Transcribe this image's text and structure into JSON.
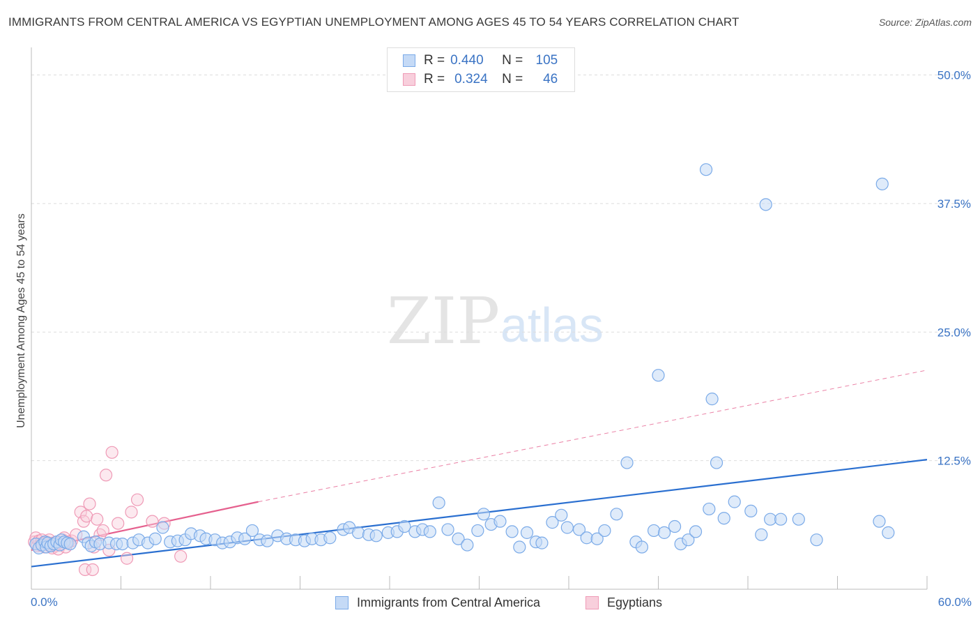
{
  "header": {
    "title": "IMMIGRANTS FROM CENTRAL AMERICA VS EGYPTIAN UNEMPLOYMENT AMONG AGES 45 TO 54 YEARS CORRELATION CHART",
    "source": "Source: ZipAtlas.com"
  },
  "watermark": {
    "zip": "ZIP",
    "atlas": "atlas"
  },
  "legend": {
    "rows": [
      {
        "r_label": "R =",
        "r_value": "0.440",
        "n_label": "N =",
        "n_value": "105"
      },
      {
        "r_label": "R =",
        "r_value": "0.324",
        "n_label": "N =",
        "n_value": "46"
      }
    ]
  },
  "bottom_legend": {
    "items": [
      "Immigrants from Central America",
      "Egyptians"
    ]
  },
  "chart_data": {
    "type": "scatter",
    "title": "IMMIGRANTS FROM CENTRAL AMERICA VS EGYPTIAN UNEMPLOYMENT AMONG AGES 45 TO 54 YEARS CORRELATION CHART",
    "xlabel": "",
    "ylabel": "Unemployment Among Ages 45 to 54 years",
    "xlim": [
      0,
      60
    ],
    "ylim": [
      0,
      52
    ],
    "x_tick_labels": [
      "0.0%",
      "60.0%"
    ],
    "y_ticks": [
      12.5,
      25.0,
      37.5,
      50.0
    ],
    "y_tick_labels": [
      "12.5%",
      "25.0%",
      "37.5%",
      "50.0%"
    ],
    "grid": "horizontal dashed",
    "legend_position": "top-center",
    "colors": {
      "blue": "#7aaae8",
      "blue_fill": "#c5daf6",
      "blue_line": "#2a6fd0",
      "pink": "#ef9ab6",
      "pink_fill": "#f8cfdc",
      "pink_line": "#e5608e",
      "tick_text": "#3a73c4"
    },
    "series": [
      {
        "name": "Immigrants from Central America",
        "r": 0.44,
        "n": 105,
        "trend": {
          "x": [
            0,
            60
          ],
          "y": [
            2.2,
            12.6
          ]
        },
        "points": [
          [
            0.3,
            4.4
          ],
          [
            0.5,
            4.0
          ],
          [
            0.7,
            4.3
          ],
          [
            0.9,
            4.6
          ],
          [
            1.0,
            4.1
          ],
          [
            1.1,
            4.5
          ],
          [
            1.3,
            4.2
          ],
          [
            1.5,
            4.4
          ],
          [
            1.7,
            4.6
          ],
          [
            1.9,
            4.3
          ],
          [
            2.0,
            4.8
          ],
          [
            2.2,
            4.6
          ],
          [
            2.4,
            4.5
          ],
          [
            2.6,
            4.4
          ],
          [
            3.5,
            5.1
          ],
          [
            3.8,
            4.5
          ],
          [
            4.0,
            4.2
          ],
          [
            4.3,
            4.6
          ],
          [
            4.6,
            4.4
          ],
          [
            5.2,
            4.5
          ],
          [
            5.7,
            4.4
          ],
          [
            6.1,
            4.4
          ],
          [
            6.8,
            4.5
          ],
          [
            7.2,
            4.8
          ],
          [
            7.8,
            4.5
          ],
          [
            8.3,
            4.9
          ],
          [
            8.8,
            6.0
          ],
          [
            9.3,
            4.6
          ],
          [
            9.8,
            4.7
          ],
          [
            10.3,
            4.8
          ],
          [
            10.7,
            5.4
          ],
          [
            11.3,
            5.2
          ],
          [
            11.7,
            4.9
          ],
          [
            12.3,
            4.8
          ],
          [
            12.8,
            4.5
          ],
          [
            13.3,
            4.6
          ],
          [
            13.8,
            5.0
          ],
          [
            14.3,
            4.9
          ],
          [
            14.8,
            5.7
          ],
          [
            15.3,
            4.8
          ],
          [
            15.8,
            4.7
          ],
          [
            16.5,
            5.2
          ],
          [
            17.1,
            4.9
          ],
          [
            17.7,
            4.8
          ],
          [
            18.3,
            4.7
          ],
          [
            18.8,
            4.9
          ],
          [
            19.4,
            4.8
          ],
          [
            20.0,
            5.0
          ],
          [
            20.9,
            5.8
          ],
          [
            21.3,
            6.0
          ],
          [
            21.9,
            5.5
          ],
          [
            22.6,
            5.3
          ],
          [
            23.1,
            5.2
          ],
          [
            23.9,
            5.5
          ],
          [
            24.5,
            5.6
          ],
          [
            25.0,
            6.1
          ],
          [
            25.7,
            5.6
          ],
          [
            26.2,
            5.8
          ],
          [
            26.7,
            5.6
          ],
          [
            27.3,
            8.4
          ],
          [
            27.9,
            5.8
          ],
          [
            28.6,
            4.9
          ],
          [
            29.2,
            4.3
          ],
          [
            29.9,
            5.7
          ],
          [
            30.3,
            7.3
          ],
          [
            30.8,
            6.3
          ],
          [
            31.4,
            6.6
          ],
          [
            32.2,
            5.6
          ],
          [
            32.7,
            4.1
          ],
          [
            33.2,
            5.5
          ],
          [
            33.8,
            4.6
          ],
          [
            34.2,
            4.5
          ],
          [
            34.9,
            6.5
          ],
          [
            35.5,
            7.2
          ],
          [
            35.9,
            6.0
          ],
          [
            36.7,
            5.8
          ],
          [
            37.2,
            5.0
          ],
          [
            37.9,
            4.9
          ],
          [
            38.4,
            5.7
          ],
          [
            39.2,
            7.3
          ],
          [
            39.9,
            12.3
          ],
          [
            40.5,
            4.6
          ],
          [
            40.9,
            4.1
          ],
          [
            41.7,
            5.7
          ],
          [
            42.4,
            5.5
          ],
          [
            43.1,
            6.1
          ],
          [
            43.5,
            4.4
          ],
          [
            44.0,
            4.8
          ],
          [
            44.5,
            5.6
          ],
          [
            45.4,
            7.8
          ],
          [
            45.9,
            12.3
          ],
          [
            46.4,
            6.9
          ],
          [
            47.1,
            8.5
          ],
          [
            48.2,
            7.6
          ],
          [
            48.9,
            5.3
          ],
          [
            49.5,
            6.8
          ],
          [
            50.2,
            6.8
          ],
          [
            51.4,
            6.8
          ],
          [
            52.6,
            4.8
          ],
          [
            56.8,
            6.6
          ],
          [
            57.4,
            5.5
          ],
          [
            45.2,
            40.8
          ],
          [
            49.2,
            37.4
          ],
          [
            57.0,
            39.4
          ],
          [
            42.0,
            20.8
          ],
          [
            45.6,
            18.5
          ]
        ]
      },
      {
        "name": "Egyptians",
        "r": 0.324,
        "n": 46,
        "trend": {
          "x": [
            0,
            15.2
          ],
          "y": [
            3.8,
            8.5
          ]
        },
        "trend_dashed": {
          "x": [
            15.2,
            60
          ],
          "y": [
            8.5,
            21.3
          ]
        },
        "points": [
          [
            0.2,
            4.6
          ],
          [
            0.3,
            5.0
          ],
          [
            0.4,
            4.2
          ],
          [
            0.5,
            4.7
          ],
          [
            0.6,
            4.3
          ],
          [
            0.7,
            4.8
          ],
          [
            0.8,
            4.5
          ],
          [
            0.9,
            4.1
          ],
          [
            1.0,
            4.6
          ],
          [
            1.1,
            4.3
          ],
          [
            1.2,
            4.8
          ],
          [
            1.3,
            4.4
          ],
          [
            1.4,
            4.0
          ],
          [
            1.5,
            4.5
          ],
          [
            1.6,
            4.2
          ],
          [
            1.7,
            4.6
          ],
          [
            1.8,
            3.9
          ],
          [
            1.9,
            4.3
          ],
          [
            2.0,
            4.4
          ],
          [
            2.1,
            4.8
          ],
          [
            2.2,
            5.0
          ],
          [
            2.3,
            4.1
          ],
          [
            2.4,
            4.5
          ],
          [
            2.5,
            4.6
          ],
          [
            2.7,
            4.7
          ],
          [
            3.0,
            5.3
          ],
          [
            3.3,
            7.5
          ],
          [
            3.5,
            6.6
          ],
          [
            3.7,
            7.1
          ],
          [
            3.9,
            8.3
          ],
          [
            4.2,
            4.1
          ],
          [
            4.4,
            6.8
          ],
          [
            4.6,
            5.3
          ],
          [
            4.8,
            5.7
          ],
          [
            5.0,
            11.1
          ],
          [
            5.2,
            3.8
          ],
          [
            5.4,
            13.3
          ],
          [
            5.8,
            6.4
          ],
          [
            6.4,
            3.0
          ],
          [
            6.7,
            7.5
          ],
          [
            7.1,
            8.7
          ],
          [
            8.1,
            6.6
          ],
          [
            8.9,
            6.4
          ],
          [
            10.0,
            3.2
          ],
          [
            3.6,
            1.9
          ],
          [
            4.1,
            1.9
          ]
        ]
      }
    ]
  }
}
